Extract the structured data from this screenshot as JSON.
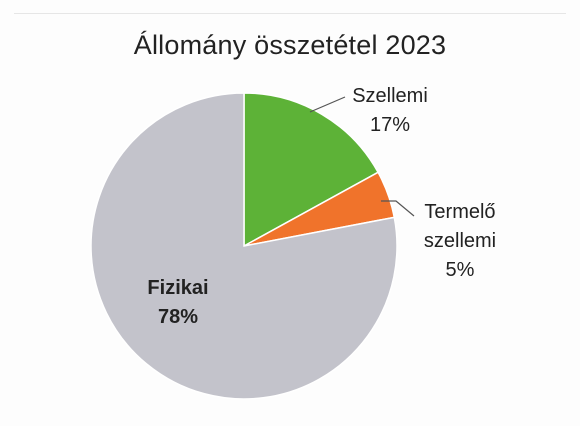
{
  "chart_data": {
    "type": "pie",
    "title": "Állomány összetétel 2023",
    "slices": [
      {
        "label": [
          "Szellemi"
        ],
        "value": 17,
        "value_label": "17%",
        "color": "#5db237"
      },
      {
        "label": [
          "Termelő",
          "szellemi"
        ],
        "value": 5,
        "value_label": "5%",
        "color": "#f0732b"
      },
      {
        "label": [
          "Fizikai"
        ],
        "value": 78,
        "value_label": "78%",
        "color": "#c3c3cb"
      }
    ],
    "start_angle_deg": 0,
    "direction": "clockwise"
  }
}
